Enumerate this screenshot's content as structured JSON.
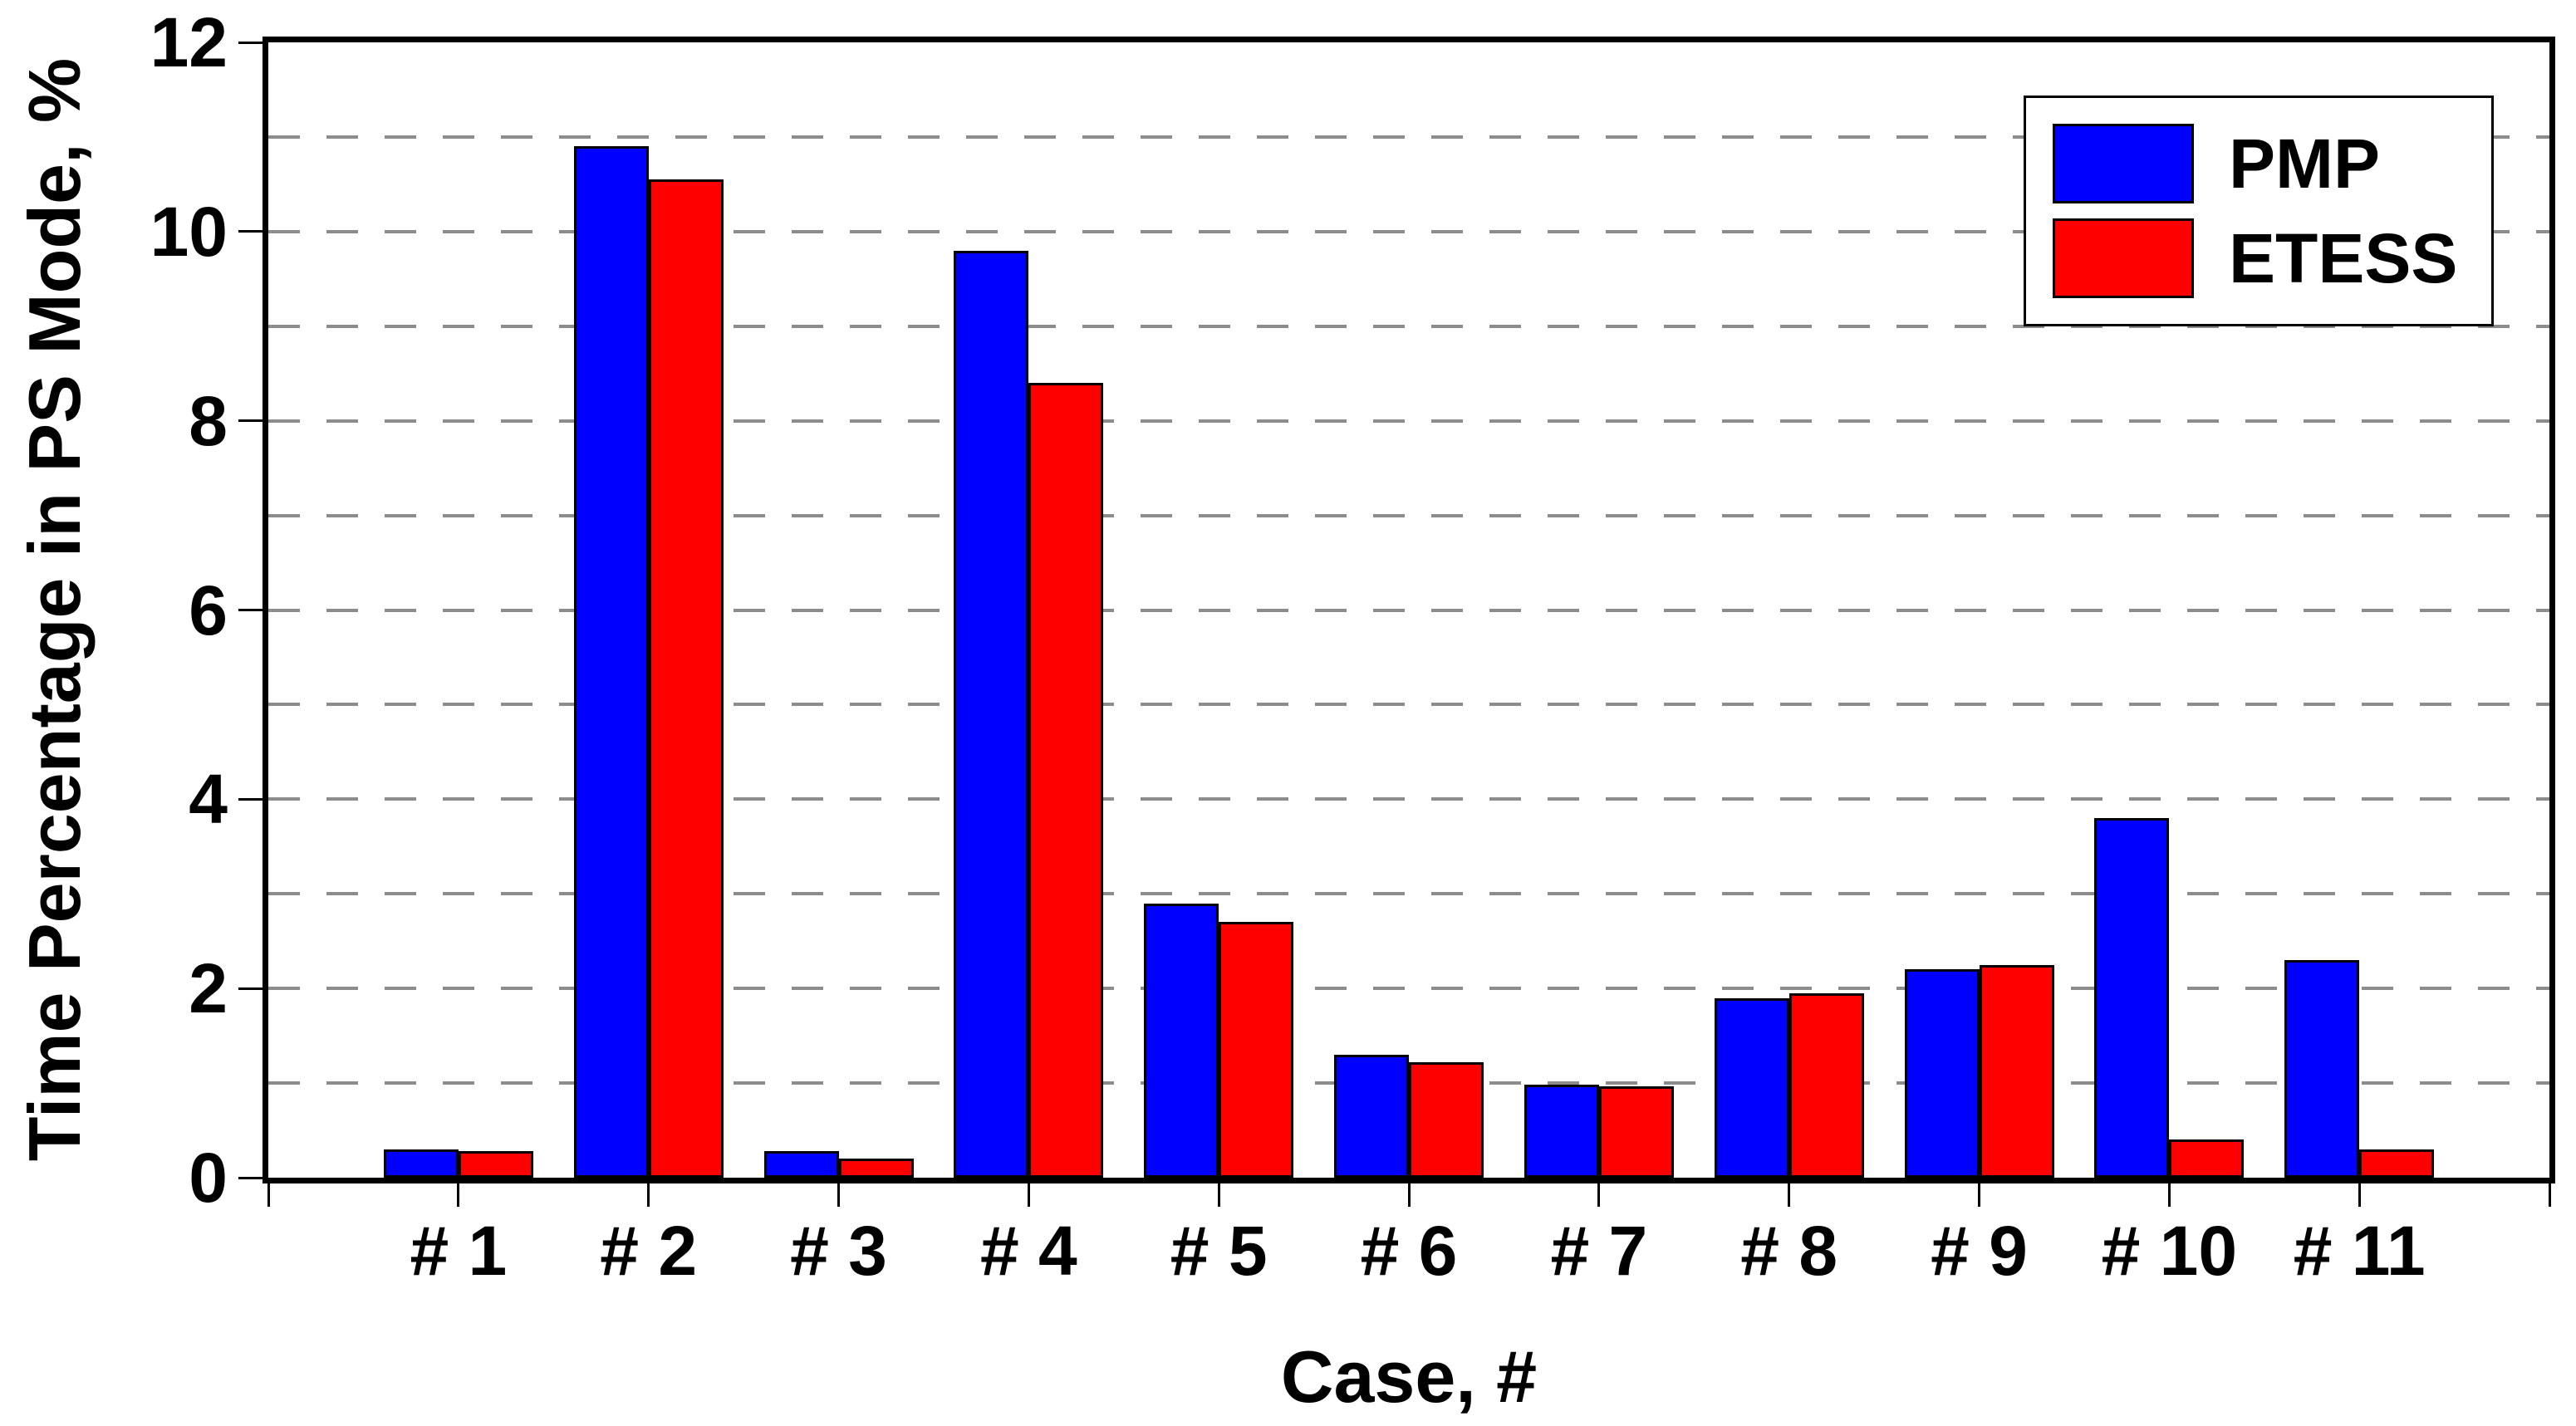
{
  "chart_data": {
    "type": "bar",
    "title": "",
    "categories": [
      "# 1",
      "# 2",
      "# 3",
      "# 4",
      "# 5",
      "# 6",
      "# 7",
      "# 8",
      "# 9",
      "# 10",
      "# 11"
    ],
    "series": [
      {
        "name": "PMP",
        "color": "#0000ff",
        "values": [
          0.3,
          10.9,
          0.28,
          9.8,
          2.9,
          1.3,
          0.98,
          1.9,
          2.2,
          3.8,
          2.3
        ]
      },
      {
        "name": "ETESS",
        "color": "#ff0000",
        "values": [
          0.28,
          10.55,
          0.2,
          8.4,
          2.7,
          1.22,
          0.97,
          1.95,
          2.25,
          0.4,
          0.3
        ]
      }
    ],
    "xlabel": "Case, #",
    "ylabel": "Time Percentage in PS Mode, %",
    "ylim": [
      0,
      12
    ],
    "yticks": [
      0,
      2,
      4,
      6,
      8,
      10,
      12
    ],
    "grid_step": 1,
    "grid_style": "dashed",
    "grid_on": true,
    "legend_position": "top-right",
    "colors": {
      "axis": "#000000",
      "grid": "#8c8c8c",
      "background": "#ffffff",
      "text": "#000000"
    }
  }
}
